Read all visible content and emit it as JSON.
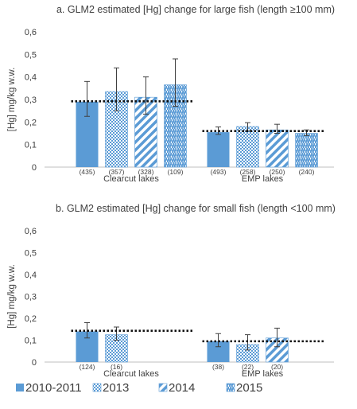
{
  "colors": {
    "bar": "#5b9bd5",
    "bar_dark": "#3f7fc0",
    "axis": "#bfbfbf",
    "text": "#404040",
    "error": "#404040",
    "mean_line": "#111111"
  },
  "legend": {
    "placement": "bottom",
    "items": [
      {
        "label": "2010-2011",
        "pattern": "solid"
      },
      {
        "label": "2013",
        "pattern": "checker"
      },
      {
        "label": "2014",
        "pattern": "diagonal"
      },
      {
        "label": "2015",
        "pattern": "vertical-wave"
      }
    ]
  },
  "chart_data": [
    {
      "type": "bar",
      "title": "a. GLM2 estimated [Hg] change for large fish (length ≥100 mm)",
      "ylabel": "[Hg] mg/kg w.w.",
      "ylim": [
        0,
        0.6
      ],
      "yticks": [
        "0",
        "0,1",
        "0,2",
        "0,3",
        "0,4",
        "0,5",
        "0,6"
      ],
      "grid": false,
      "categories": [
        "Clearcut lakes",
        "EMP lakes"
      ],
      "series": [
        {
          "name": "2010-2011",
          "values": [
            0.29,
            0.155
          ],
          "err_low": [
            0.225,
            0.145
          ],
          "err_high": [
            0.38,
            0.178
          ],
          "n": [
            "(435)",
            "(493)"
          ]
        },
        {
          "name": "2013",
          "values": [
            0.335,
            0.18
          ],
          "err_low": [
            0.25,
            0.16
          ],
          "err_high": [
            0.44,
            0.197
          ],
          "n": [
            "(357)",
            "(258)"
          ]
        },
        {
          "name": "2014",
          "values": [
            0.31,
            0.165
          ],
          "err_low": [
            0.235,
            0.15
          ],
          "err_high": [
            0.4,
            0.19
          ],
          "n": [
            "(328)",
            "(250)"
          ]
        },
        {
          "name": "2015",
          "values": [
            0.365,
            0.15
          ],
          "err_low": [
            0.27,
            0.14
          ],
          "err_high": [
            0.48,
            0.165
          ],
          "n": [
            "(109)",
            "(240)"
          ]
        }
      ],
      "reference_lines": [
        0.292,
        0.16
      ]
    },
    {
      "type": "bar",
      "title": "b. GLM2 estimated [Hg] change for small fish (length <100 mm)",
      "ylabel": "[Hg] mg/kg w.w.",
      "ylim": [
        0,
        0.6
      ],
      "yticks": [
        "0",
        "0,1",
        "0,2",
        "0,3",
        "0,4",
        "0,5",
        "0,6"
      ],
      "grid": false,
      "categories": [
        "Clearcut lakes",
        "EMP lakes"
      ],
      "series": [
        {
          "name": "2010-2011",
          "values": [
            0.14,
            0.095
          ],
          "err_low": [
            0.11,
            0.07
          ],
          "err_high": [
            0.18,
            0.13
          ],
          "n": [
            "(124)",
            "(38)"
          ]
        },
        {
          "name": "2013",
          "values": [
            0.125,
            0.08
          ],
          "err_low": [
            0.1,
            0.055
          ],
          "err_high": [
            0.16,
            0.125
          ],
          "n": [
            "(16)",
            "(22)"
          ]
        },
        {
          "name": "2014",
          "values": [
            null,
            0.11
          ],
          "err_low": [
            null,
            0.07
          ],
          "err_high": [
            null,
            0.155
          ],
          "n": [
            "",
            "(20)"
          ]
        },
        {
          "name": "2015",
          "values": [
            null,
            null
          ],
          "err_low": [
            null,
            null
          ],
          "err_high": [
            null,
            null
          ],
          "n": [
            "",
            ""
          ]
        }
      ],
      "reference_lines": [
        0.143,
        0.095
      ]
    }
  ]
}
